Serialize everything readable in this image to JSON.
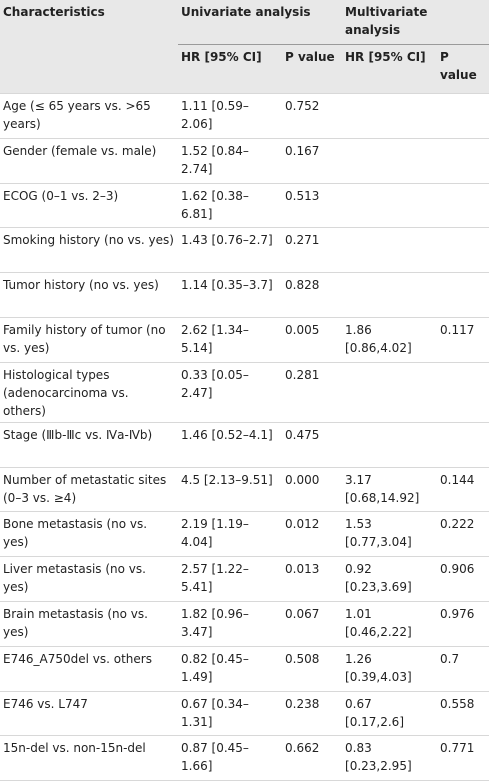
{
  "table": {
    "header": {
      "characteristics": "Characteristics",
      "univariate": "Univariate analysis",
      "multivariate": "Multivariate analysis",
      "sub": [
        "HR [95% CI]",
        "P value",
        "HR [95% CI]",
        "P value"
      ]
    },
    "rows": [
      [
        "Age (≤ 65 years vs. >65 years)",
        "1.11 [0.59–2.06]",
        "0.752",
        null,
        null
      ],
      [
        "Gender (female vs. male)",
        "1.52 [0.84–2.74]",
        "0.167",
        null,
        null
      ],
      [
        "ECOG (0–1 vs. 2–3)",
        "1.62 [0.38–6.81]",
        "0.513",
        null,
        null
      ],
      [
        "Smoking history (no vs. yes)",
        "1.43 [0.76–2.7]",
        "0.271",
        null,
        null
      ],
      [
        "Tumor history (no vs. yes)",
        "1.14 [0.35–3.7]",
        "0.828",
        null,
        null
      ],
      [
        "Family history of tumor (no vs. yes)",
        "2.62 [1.34–5.14]",
        "0.005",
        "1.86 [0.86,4.02]",
        "0.117"
      ],
      [
        "Histological types (adenocarcinoma vs. others)",
        "0.33 [0.05–2.47]",
        "0.281",
        null,
        null
      ],
      [
        "Stage (Ⅲb-Ⅲc vs. Ⅳa-Ⅳb)",
        "1.46 [0.52–4.1]",
        "0.475",
        null,
        null
      ],
      [
        "Number of metastatic sites (0–3 vs. ≥4)",
        "4.5 [2.13–9.51]",
        "0.000",
        "3.17 [0.68,14.92]",
        "0.144"
      ],
      [
        "Bone metastasis (no vs. yes)",
        "2.19 [1.19–4.04]",
        "0.012",
        "1.53 [0.77,3.04]",
        "0.222"
      ],
      [
        "Liver metastasis (no vs. yes)",
        "2.57 [1.22–5.41]",
        "0.013",
        "0.92 [0.23,3.69]",
        "0.906"
      ],
      [
        "Brain metastasis (no vs. yes)",
        "1.82 [0.96–3.47]",
        "0.067",
        "1.01 [0.46,2.22]",
        "0.976"
      ],
      [
        "E746_A750del vs. others",
        "0.82 [0.45–1.49]",
        "0.508",
        "1.26 [0.39,4.03]",
        "0.7"
      ],
      [
        "E746 vs. L747",
        "0.67 [0.34–1.31]",
        "0.238",
        "0.67 [0.17,2.6]",
        "0.558"
      ],
      [
        "15n-del vs. non-15n-del",
        "0.87 [0.45–1.66]",
        "0.662",
        "0.83 [0.23,2.95]",
        "0.771"
      ]
    ]
  }
}
